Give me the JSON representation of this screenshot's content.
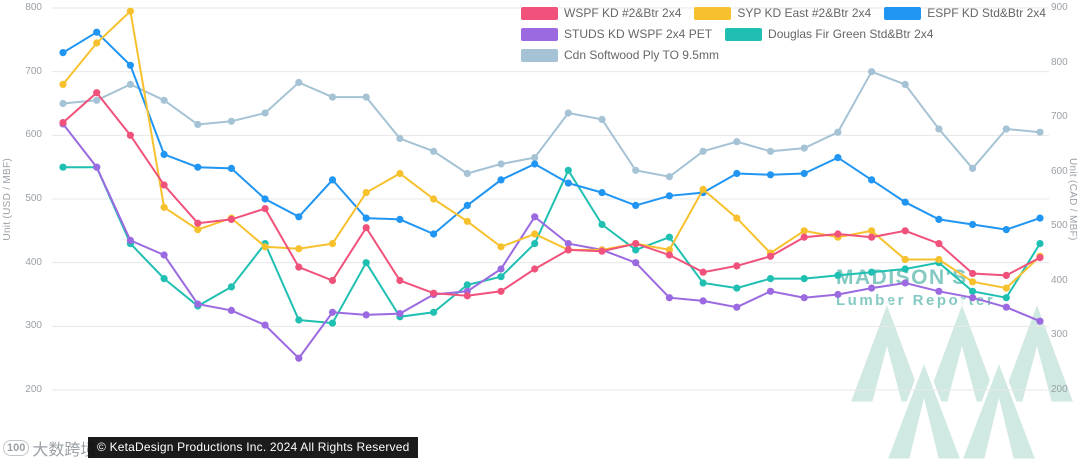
{
  "chart_data": {
    "type": "line",
    "legend_position": "top-right",
    "grid": "horizontal",
    "x_labels_visible": false,
    "axes": {
      "left": {
        "title": "Unit (USD / MBF)",
        "ticks": [
          800,
          700,
          600,
          500,
          400,
          300,
          200
        ],
        "range": [
          200,
          800
        ]
      },
      "right": {
        "title": "Unit (CAD / MBF)",
        "ticks": [
          900,
          800,
          700,
          600,
          500,
          400,
          300,
          200
        ],
        "range": [
          200,
          900
        ]
      }
    },
    "series": [
      {
        "name": "WSPF KD #2&Btr 2x4",
        "color": "#f0527b",
        "values": [
          620,
          667,
          600,
          522,
          462,
          468,
          485,
          393,
          372,
          455,
          372,
          352,
          348,
          355,
          390,
          420,
          418,
          430,
          412,
          385,
          395,
          410,
          440,
          445,
          440,
          450,
          430,
          383,
          380,
          408
        ]
      },
      {
        "name": "SYP KD East #2&Btr 2x4",
        "color": "#f7c12e",
        "values": [
          680,
          745,
          795,
          487,
          452,
          470,
          425,
          422,
          430,
          510,
          540,
          500,
          465,
          425,
          445,
          420,
          420,
          430,
          420,
          515,
          470,
          415,
          450,
          440,
          450,
          405,
          405,
          370,
          360,
          410
        ]
      },
      {
        "name": "ESPF KD Std&Btr 2x4",
        "color": "#2095f2",
        "values": [
          730,
          762,
          710,
          570,
          550,
          548,
          500,
          472,
          530,
          470,
          468,
          445,
          490,
          530,
          555,
          525,
          510,
          490,
          505,
          510,
          540,
          538,
          540,
          565,
          530,
          495,
          468,
          460,
          452,
          470
        ]
      },
      {
        "name": "STUDS KD WSPF 2x4 PET",
        "color": "#9b6ae0",
        "values": [
          618,
          550,
          435,
          412,
          335,
          325,
          302,
          250,
          322,
          318,
          320,
          350,
          355,
          390,
          472,
          430,
          420,
          400,
          345,
          340,
          330,
          355,
          345,
          350,
          360,
          368,
          355,
          345,
          330,
          308
        ]
      },
      {
        "name": "Douglas Fir Green Std&Btr 2x4",
        "color": "#1fc0b2",
        "values": [
          550,
          550,
          430,
          375,
          332,
          362,
          430,
          310,
          305,
          400,
          315,
          322,
          365,
          378,
          430,
          545,
          460,
          420,
          440,
          368,
          360,
          375,
          375,
          380,
          385,
          390,
          400,
          355,
          345,
          430
        ]
      },
      {
        "name": "Cdn Softwood Ply TO 9.5mm",
        "color": "#a5c3d5",
        "values": [
          650,
          655,
          680,
          655,
          617,
          622,
          635,
          683,
          660,
          660,
          595,
          575,
          540,
          555,
          565,
          635,
          625,
          545,
          535,
          575,
          590,
          575,
          580,
          605,
          700,
          680,
          610,
          548,
          610,
          605
        ]
      }
    ]
  },
  "watermarks": {
    "madisons": {
      "line1": "MADISON'S",
      "line2": "Lumber Reporter",
      "color": "#33a79a"
    },
    "cn": {
      "logo": "100",
      "text": "大数跨境"
    }
  },
  "footer": {
    "copyright": "© KetaDesign Productions Inc. 2024 All Rights Reserved"
  }
}
